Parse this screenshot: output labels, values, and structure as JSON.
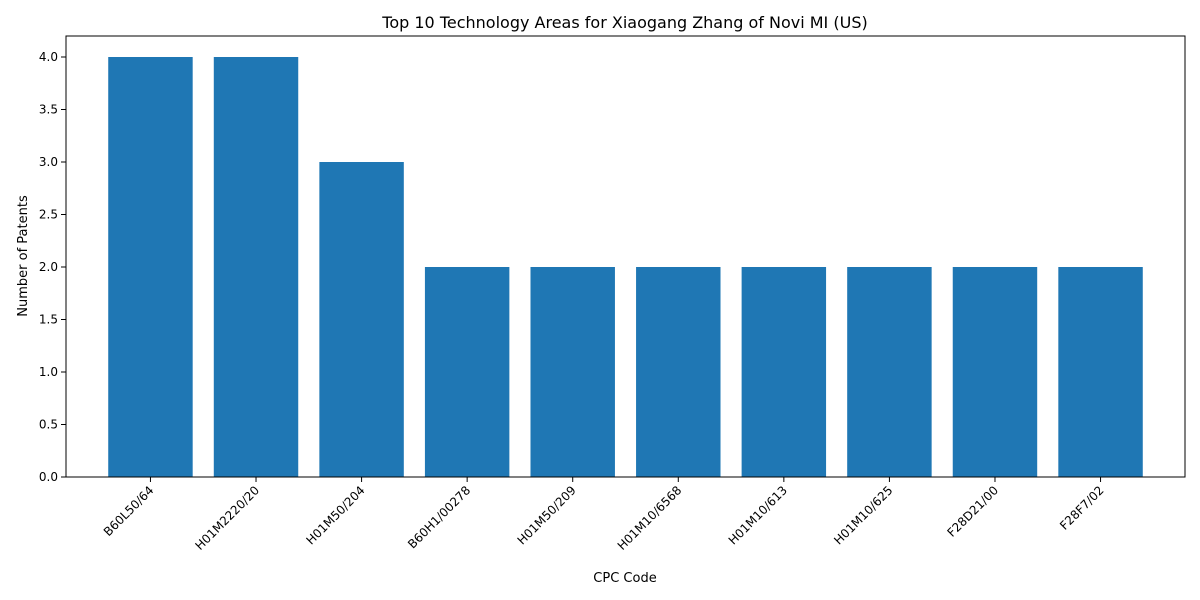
{
  "chart_data": {
    "type": "bar",
    "title": "Top 10 Technology Areas for Xiaogang Zhang of Novi MI (US)",
    "xlabel": "CPC Code",
    "ylabel": "Number of Patents",
    "categories": [
      "B60L50/64",
      "H01M2220/20",
      "H01M50/204",
      "B60H1/00278",
      "H01M50/209",
      "H01M10/6568",
      "H01M10/613",
      "H01M10/625",
      "F28D21/00",
      "F28F7/02"
    ],
    "values": [
      4,
      4,
      3,
      2,
      2,
      2,
      2,
      2,
      2,
      2
    ],
    "ylim": [
      0,
      4.2
    ],
    "yticks": [
      0.0,
      0.5,
      1.0,
      1.5,
      2.0,
      2.5,
      3.0,
      3.5,
      4.0
    ],
    "grid": false,
    "bar_color": "#1f77b4"
  }
}
